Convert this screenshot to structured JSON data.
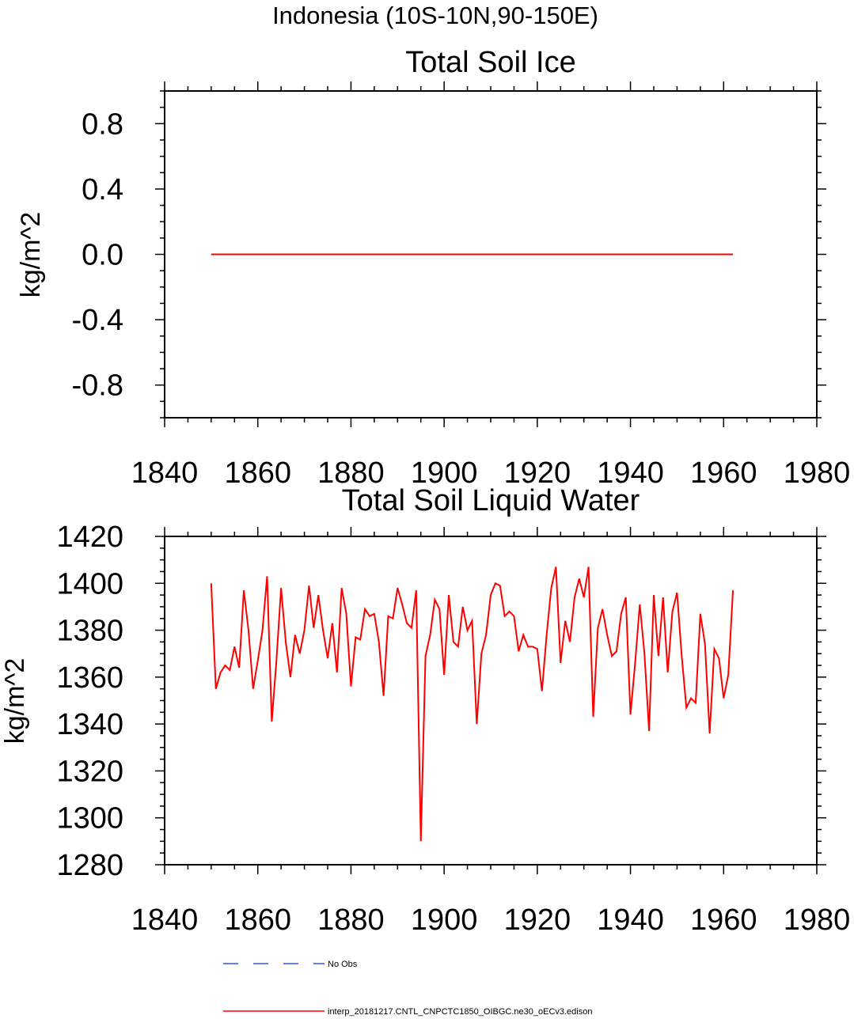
{
  "figure_title": "Indonesia (10S-10N,90-150E)",
  "legend": {
    "obs_label": "No Obs",
    "model_label": "interp_20181217.CNTL_CNPCTC1850_OIBGC.ne30_oECv3.edison",
    "obs_color": "#3050e0",
    "model_color": "#ff0000"
  },
  "chart_data": [
    {
      "type": "line",
      "title": "Total Soil Ice",
      "xlabel": "",
      "ylabel": "kg/m^2",
      "xlim": [
        1840,
        1980
      ],
      "ylim": [
        -1.0,
        1.0
      ],
      "x_ticks": [
        1840,
        1860,
        1880,
        1900,
        1920,
        1940,
        1960,
        1980
      ],
      "y_ticks": [
        -0.8,
        -0.4,
        0.0,
        0.4,
        0.8
      ],
      "y_tick_labels": [
        "-0.8",
        "-0.4",
        "0.0",
        "0.4",
        "0.8"
      ],
      "series": [
        {
          "name": "interp_20181217.CNTL_CNPCTC1850_OIBGC.ne30_oECv3.edison",
          "color": "#ff0000",
          "x": [
            1850,
            1962
          ],
          "values": [
            0.0,
            0.0
          ]
        }
      ]
    },
    {
      "type": "line",
      "title": "Total Soil Liquid Water",
      "xlabel": "",
      "ylabel": "kg/m^2",
      "xlim": [
        1840,
        1980
      ],
      "ylim": [
        1280,
        1420
      ],
      "x_ticks": [
        1840,
        1860,
        1880,
        1900,
        1920,
        1940,
        1960,
        1980
      ],
      "y_ticks": [
        1280,
        1300,
        1320,
        1340,
        1360,
        1380,
        1400,
        1420
      ],
      "y_tick_labels": [
        "1280",
        "1300",
        "1320",
        "1340",
        "1360",
        "1380",
        "1400",
        "1420"
      ],
      "series": [
        {
          "name": "interp_20181217.CNTL_CNPCTC1850_OIBGC.ne30_oECv3.edison",
          "color": "#ff0000",
          "x_start": 1850,
          "values": [
            1400,
            1355,
            1362,
            1365,
            1363,
            1373,
            1364,
            1397,
            1380,
            1355,
            1367,
            1380,
            1403,
            1341,
            1367,
            1398,
            1375,
            1360,
            1378,
            1370,
            1380,
            1399,
            1381,
            1395,
            1380,
            1368,
            1383,
            1362,
            1398,
            1387,
            1356,
            1377,
            1376,
            1389,
            1386,
            1387,
            1375,
            1352,
            1386,
            1385,
            1398,
            1391,
            1383,
            1381,
            1397,
            1290,
            1369,
            1378,
            1393,
            1389,
            1361,
            1395,
            1375,
            1373,
            1390,
            1380,
            1384,
            1340,
            1370,
            1378,
            1395,
            1400,
            1399,
            1386,
            1388,
            1386,
            1371,
            1378,
            1373,
            1373,
            1372,
            1354,
            1378,
            1398,
            1407,
            1366,
            1384,
            1375,
            1394,
            1402,
            1394,
            1407,
            1343,
            1381,
            1389,
            1378,
            1369,
            1371,
            1387,
            1394,
            1344,
            1366,
            1391,
            1370,
            1337,
            1395,
            1369,
            1394,
            1362,
            1388,
            1396,
            1369,
            1347,
            1351,
            1349,
            1387,
            1374,
            1336,
            1372,
            1368,
            1351,
            1361,
            1397
          ]
        }
      ]
    }
  ]
}
